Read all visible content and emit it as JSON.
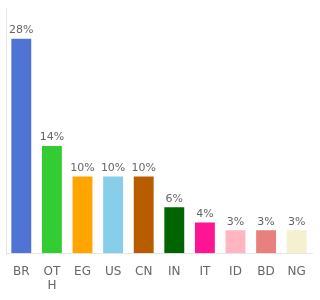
{
  "chart_data": {
    "type": "bar",
    "categories": [
      "BR",
      "OT\nH",
      "EG",
      "US",
      "CN",
      "IN",
      "IT",
      "ID",
      "BD",
      "NG"
    ],
    "values": [
      28,
      14,
      10,
      10,
      10,
      6,
      4,
      3,
      3,
      3
    ],
    "value_labels": [
      "28%",
      "14%",
      "10%",
      "10%",
      "10%",
      "6%",
      "4%",
      "3%",
      "3%",
      "3%"
    ],
    "colors": [
      "#4f74d4",
      "#33cc33",
      "#ffa500",
      "#87ceeb",
      "#b85c00",
      "#006400",
      "#ff1493",
      "#ffb6c1",
      "#e88080",
      "#f5f0d0"
    ],
    "ylim": [
      0,
      32
    ],
    "data_labels": true,
    "grid": false,
    "tick_labels": "x"
  }
}
